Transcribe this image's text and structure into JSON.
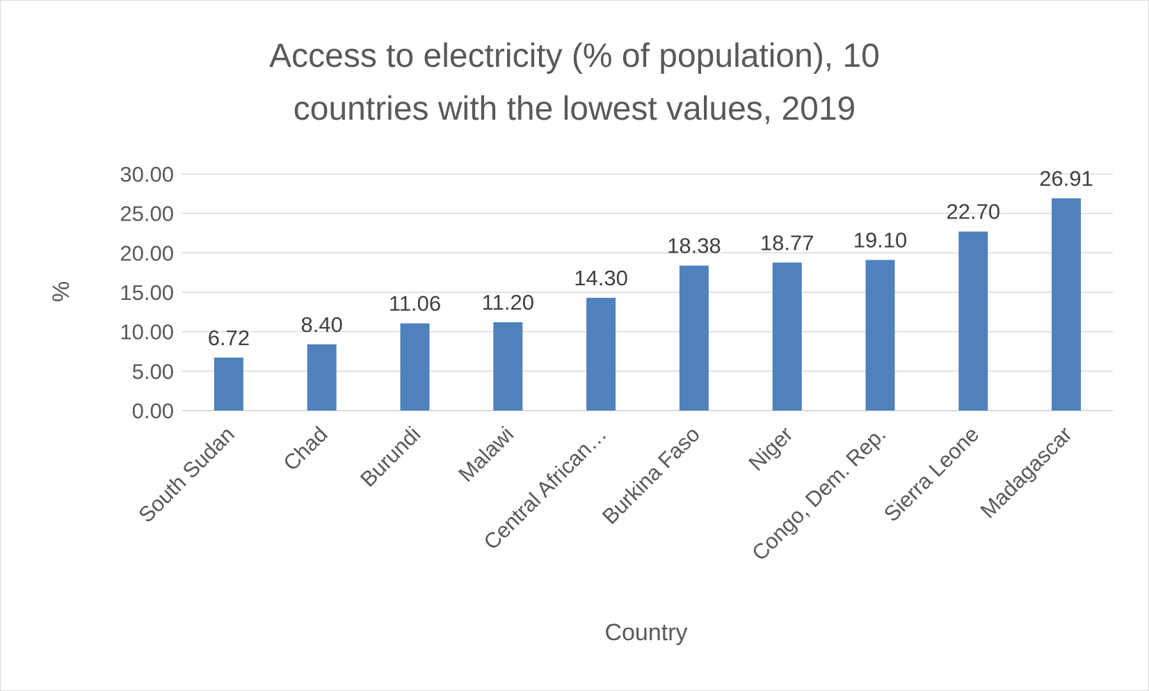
{
  "chart_data": {
    "type": "bar",
    "title_lines": [
      "Access to electricity (% of population),  10",
      "countries with the lowest values, 2019"
    ],
    "xlabel": "Country",
    "ylabel": "%",
    "categories": [
      "South Sudan",
      "Chad",
      "Burundi",
      "Malawi",
      "Central African…",
      "Burkina Faso",
      "Niger",
      "Congo, Dem. Rep.",
      "Sierra Leone",
      "Madagascar"
    ],
    "values": [
      6.72,
      8.4,
      11.06,
      11.2,
      14.3,
      18.38,
      18.77,
      19.1,
      22.7,
      26.91
    ],
    "data_labels": [
      "6.72",
      "8.40",
      "11.06",
      "11.20",
      "14.30",
      "18.38",
      "18.77",
      "19.10",
      "22.70",
      "26.91"
    ],
    "ylim": [
      0,
      30
    ],
    "yticks": [
      0,
      5,
      10,
      15,
      20,
      25,
      30
    ],
    "ytick_labels": [
      "0.00",
      "5.00",
      "10.00",
      "15.00",
      "20.00",
      "25.00",
      "30.00"
    ],
    "grid": true,
    "legend": "none",
    "bar_color": "#4f81bd"
  }
}
